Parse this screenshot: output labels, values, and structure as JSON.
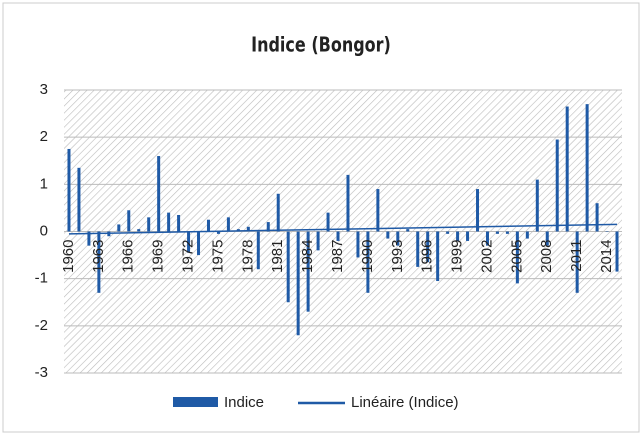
{
  "chart_data": {
    "type": "bar",
    "title": "Indice (Bongor)",
    "x": [
      1960,
      1961,
      1962,
      1963,
      1964,
      1965,
      1966,
      1967,
      1968,
      1969,
      1970,
      1971,
      1972,
      1973,
      1974,
      1975,
      1976,
      1977,
      1978,
      1979,
      1980,
      1981,
      1982,
      1983,
      1984,
      1985,
      1986,
      1987,
      1988,
      1989,
      1990,
      1991,
      1992,
      1993,
      1994,
      1995,
      1996,
      1997,
      1998,
      1999,
      2000,
      2001,
      2002,
      2003,
      2004,
      2005,
      2006,
      2007,
      2008,
      2009,
      2010,
      2011,
      2012,
      2013,
      2014,
      2015
    ],
    "series": [
      {
        "name": "Indice",
        "color": "#1f5aa6",
        "values": [
          1.75,
          1.35,
          -0.3,
          -1.3,
          -0.1,
          0.15,
          0.45,
          0.05,
          0.3,
          1.6,
          0.4,
          0.35,
          -0.45,
          -0.5,
          0.25,
          -0.05,
          0.3,
          0.05,
          0.1,
          -0.8,
          0.2,
          0.8,
          -1.5,
          -2.2,
          -1.7,
          -0.4,
          0.4,
          -0.2,
          1.2,
          -0.55,
          -1.3,
          0.9,
          -0.15,
          -0.3,
          0.05,
          -0.75,
          -0.65,
          -1.05,
          -0.05,
          -0.2,
          -0.2,
          0.9,
          -0.3,
          -0.05,
          -0.05,
          -1.1,
          -0.15,
          1.1,
          -0.3,
          1.95,
          2.65,
          -1.3,
          2.7,
          0.6,
          0.0,
          -0.85
        ]
      },
      {
        "name": "Linéaire (Indice)",
        "color": "#1f5aa6",
        "type": "line",
        "x": [
          1960,
          2015
        ],
        "values": [
          -0.05,
          0.15
        ]
      }
    ],
    "xlim": [
      1959.5,
      2015.5
    ],
    "xticks": [
      1960,
      1963,
      1966,
      1969,
      1972,
      1975,
      1978,
      1981,
      1984,
      1987,
      1990,
      1993,
      1996,
      1999,
      2002,
      2005,
      2008,
      2011,
      2014
    ],
    "ylim": [
      -3,
      3
    ],
    "yticks": [
      -3,
      -2,
      -1,
      0,
      1,
      2,
      3
    ],
    "grid": true,
    "legend": "bottom"
  }
}
